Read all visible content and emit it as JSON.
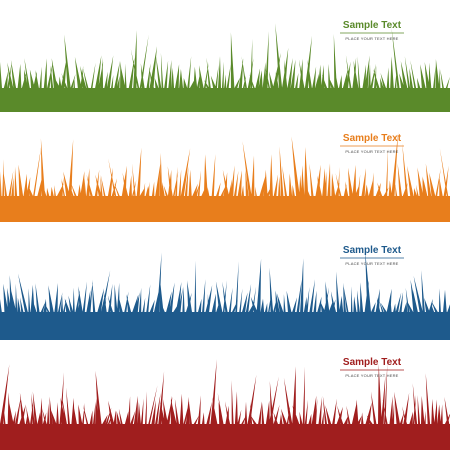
{
  "banners": [
    {
      "title": "Sample Text",
      "subtitle": "PLACE YOUR TEXT HERE",
      "color": "#5a8a2a"
    },
    {
      "title": "Sample Text",
      "subtitle": "PLACE YOUR TEXT HERE",
      "color": "#e87e1c"
    },
    {
      "title": "Sample Text",
      "subtitle": "PLACE YOUR TEXT HERE",
      "color": "#1e5a8c"
    },
    {
      "title": "Sample Text",
      "subtitle": "PLACE YOUR TEXT HERE",
      "color": "#a01e1e"
    }
  ]
}
